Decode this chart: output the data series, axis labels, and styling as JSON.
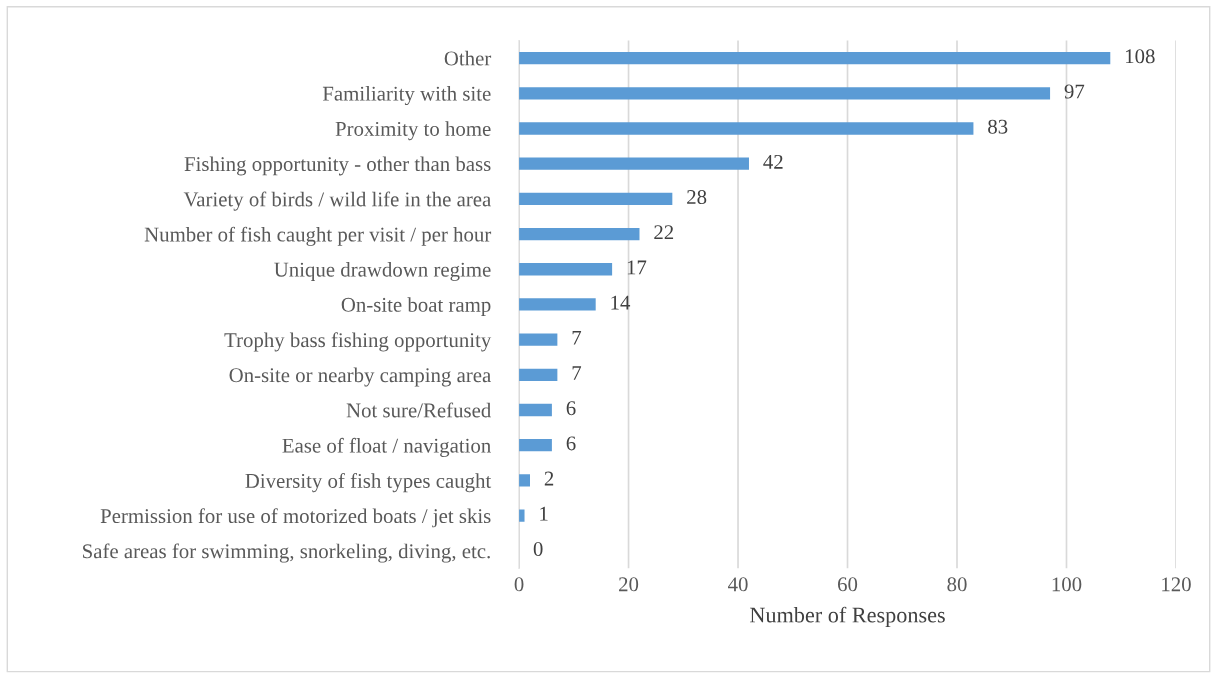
{
  "chart_data": {
    "type": "bar",
    "orientation": "horizontal",
    "xlabel": "Number of Responses",
    "categories": [
      "Other",
      "Familiarity with site",
      "Proximity to home",
      "Fishing opportunity - other than bass",
      "Variety of birds / wild life in the area",
      "Number of fish caught per visit / per hour",
      "Unique drawdown regime",
      "On-site boat ramp",
      "Trophy bass fishing opportunity",
      "On-site or nearby camping area",
      "Not sure/Refused",
      "Ease of float / navigation",
      "Diversity of fish types caught",
      "Permission for use of motorized boats / jet skis",
      "Safe areas for swimming, snorkeling, diving, etc."
    ],
    "values": [
      108,
      97,
      83,
      42,
      28,
      22,
      17,
      14,
      7,
      7,
      6,
      6,
      2,
      1,
      0
    ],
    "color": "#5b9bd5",
    "xlim": [
      0,
      120
    ],
    "xticks": [
      0,
      20,
      40,
      60,
      80,
      100,
      120
    ],
    "grid": "x",
    "data_labels": true
  }
}
